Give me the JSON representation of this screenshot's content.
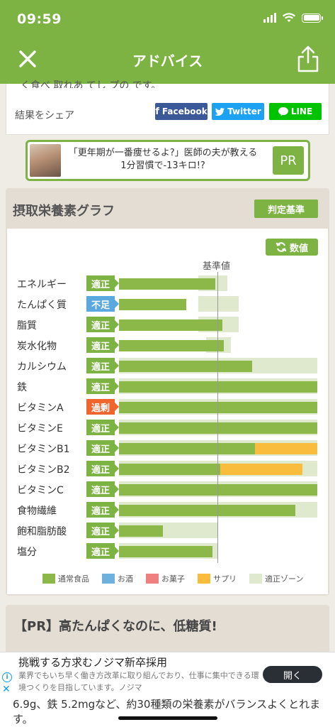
{
  "status_bar": {
    "time": "09:59"
  },
  "nav": {
    "title": "アドバイス"
  },
  "share": {
    "cut_text": "く食べ 取れあ てし プの です。",
    "label": "結果をシェア",
    "facebook": "Facebook",
    "twitter": "Twitter",
    "line": "LINE"
  },
  "pr_banner": {
    "text": "「更年期が一番痩せるよ?」医師の夫が教える1分習慣で-13キロ!?",
    "badge": "PR"
  },
  "graph": {
    "title": "摂取栄養素グラフ",
    "criteria_button": "判定基準",
    "values_button": "数値",
    "reference_label": "基準値"
  },
  "chart_data": {
    "type": "bar",
    "title": "摂取栄養素グラフ",
    "reference_label": "基準値",
    "unit": "percent of reference",
    "categories": [
      "エネルギー",
      "たんぱく質",
      "脂質",
      "炭水化物",
      "カルシウム",
      "鉄",
      "ビタミンA",
      "ビタミンE",
      "ビタミンB1",
      "ビタミンB2",
      "ビタミンC",
      "食物繊維",
      "飽和脂肪酸",
      "塩分"
    ],
    "status": [
      "適正",
      "不足",
      "適正",
      "適正",
      "適正",
      "適正",
      "過剰",
      "適正",
      "適正",
      "適正",
      "適正",
      "適正",
      "適正",
      "適正"
    ],
    "series": [
      {
        "name": "通常食品",
        "values": [
          97,
          68,
          104,
          106,
          134,
          200,
          200,
          200,
          137,
          102,
          200,
          178,
          44,
          94
        ]
      },
      {
        "name": "お酒",
        "values": [
          0,
          0,
          0,
          0,
          0,
          0,
          0,
          0,
          0,
          0,
          0,
          0,
          0,
          0
        ]
      },
      {
        "name": "お菓子",
        "values": [
          0,
          0,
          0,
          0,
          0,
          0,
          0,
          0,
          0,
          0,
          0,
          0,
          0,
          0
        ]
      },
      {
        "name": "サプリ",
        "values": [
          0,
          0,
          0,
          0,
          0,
          0,
          0,
          0,
          63,
          83,
          0,
          0,
          0,
          0
        ]
      }
    ],
    "zones": [
      [
        80,
        109
      ],
      [
        80,
        121
      ],
      [
        80,
        121
      ],
      [
        88,
        113
      ],
      [
        0,
        200
      ],
      [
        0,
        200
      ],
      [
        0,
        200
      ],
      [
        0,
        200
      ],
      [
        0,
        200
      ],
      [
        0,
        200
      ],
      [
        0,
        200
      ],
      [
        0,
        200
      ],
      [
        0,
        100
      ],
      [
        0,
        100
      ]
    ],
    "xlim": [
      0,
      200
    ],
    "legend": [
      {
        "label": "通常食品",
        "color": "#8cb84a"
      },
      {
        "label": "お酒",
        "color": "#6fb1dd"
      },
      {
        "label": "お菓子",
        "color": "#f08080"
      },
      {
        "label": "サプリ",
        "color": "#f9bc3d"
      },
      {
        "label": "適正ゾーン",
        "color": "#dfe9cd"
      }
    ]
  },
  "status_colors": {
    "適正": "#7cb342",
    "不足": "#5aa9de",
    "過剰": "#f0642d"
  },
  "pr_section": {
    "title": "【PR】高たんぱくなのに、低糖質!"
  },
  "ad": {
    "title": "挑戦する方求むノジマ新卒採用",
    "body": "業界でもいち早く働き方改革に取り組んでおり、仕事に集中できる環境つくりを目指しています。ノジマ",
    "button": "開く"
  },
  "bottom_text": "6.9g、鉄 5.2mgなど、約30種類の栄養素がバランスよくとれます。"
}
